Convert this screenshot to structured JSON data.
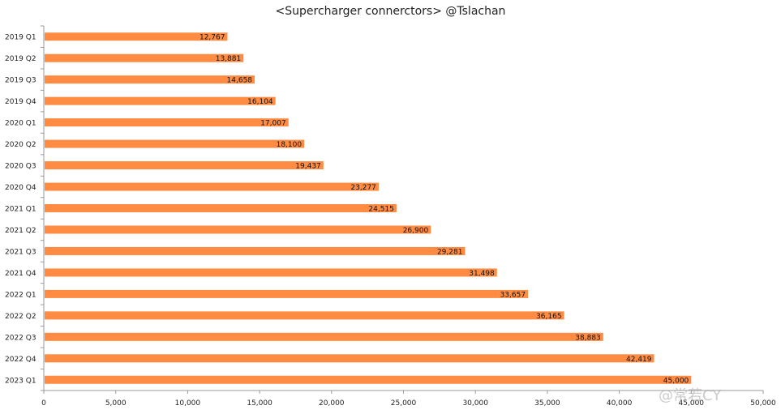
{
  "chart_data": {
    "type": "bar",
    "orientation": "horizontal",
    "title": "<Supercharger connerctors> @Tslachan",
    "xlabel": "",
    "ylabel": "",
    "categories": [
      "2019 Q1",
      "2019 Q2",
      "2019 Q3",
      "2019 Q4",
      "2020 Q1",
      "2020 Q2",
      "2020 Q3",
      "2020 Q4",
      "2021 Q1",
      "2021 Q2",
      "2021 Q3",
      "2021 Q4",
      "2022 Q1",
      "2022 Q2",
      "2022 Q3",
      "2022 Q4",
      "2023 Q1"
    ],
    "values": [
      12767,
      13881,
      14658,
      16104,
      17007,
      18100,
      19437,
      23277,
      24515,
      26900,
      29281,
      31498,
      33657,
      36165,
      38883,
      42419,
      45000
    ],
    "value_labels": [
      "12,767",
      "13,881",
      "14,658",
      "16,104",
      "17,007",
      "18,100",
      "19,437",
      "23,277",
      "24,515",
      "26,900",
      "29,281",
      "31,498",
      "33,657",
      "36,165",
      "38,883",
      "42,419",
      "45,000"
    ],
    "xlim": [
      0,
      50000
    ],
    "xticks": [
      0,
      5000,
      10000,
      15000,
      20000,
      25000,
      30000,
      35000,
      40000,
      45000,
      50000
    ],
    "xtick_labels": [
      "0",
      "5,000",
      "10,000",
      "15,000",
      "20,000",
      "25,000",
      "30,000",
      "35,000",
      "40,000",
      "45,000",
      "50,000"
    ],
    "grid": false,
    "legend": "none",
    "bar_color": "#FF8C42"
  },
  "watermark": "@常若CY"
}
